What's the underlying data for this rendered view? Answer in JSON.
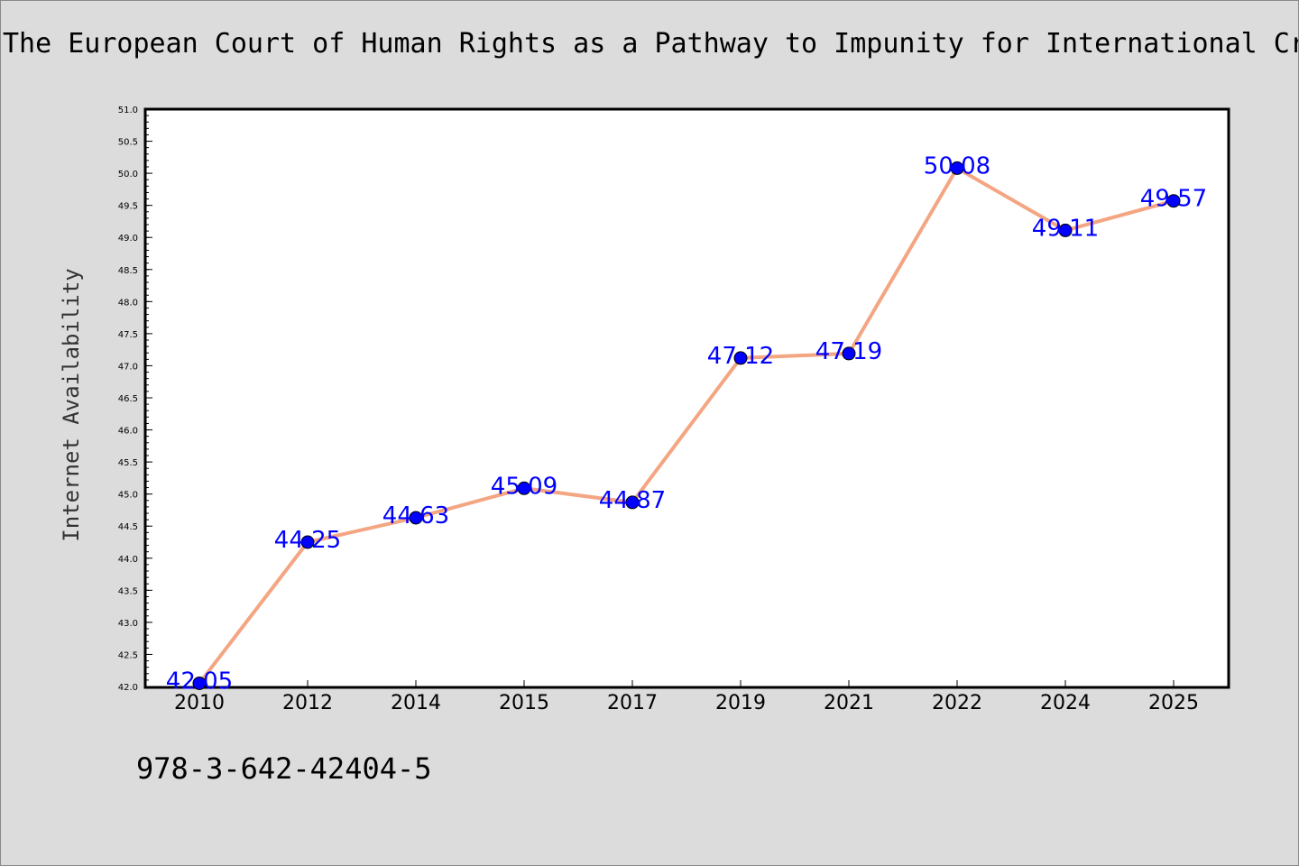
{
  "title": "The European Court of Human Rights as a Pathway to Impunity for International Cr",
  "footer": "978-3-642-42404-5",
  "colors": {
    "background": "#dcdcdc",
    "plot_background": "#ffffff",
    "line": "#f4a582",
    "marker": "#0000ff",
    "label": "#0000ff"
  },
  "chart_data": {
    "type": "line",
    "categories": [
      "2010",
      "2012",
      "2014",
      "2015",
      "2017",
      "2019",
      "2021",
      "2022",
      "2024",
      "2025"
    ],
    "series": [
      {
        "values": [
          42.05,
          44.25,
          44.63,
          45.09,
          44.87,
          47.12,
          47.19,
          50.08,
          49.11,
          49.57
        ],
        "labels": [
          "42.05",
          "44.25",
          "44.63",
          "45.09",
          "44.87",
          "47.12",
          "47.19",
          "50.08",
          "49.11",
          "49.57"
        ]
      }
    ],
    "xlabel": "",
    "ylabel": "Internet Availability",
    "ylim": [
      42.0,
      51.0
    ],
    "yticks": [
      "42.0",
      "42.5",
      "43.0",
      "43.5",
      "44.0",
      "44.5",
      "45.0",
      "45.5",
      "46.0",
      "46.5",
      "47.0",
      "47.5",
      "48.0",
      "48.5",
      "49.0",
      "49.5",
      "50.0",
      "50.5",
      "51.0"
    ],
    "grid": false,
    "legend": "none"
  }
}
